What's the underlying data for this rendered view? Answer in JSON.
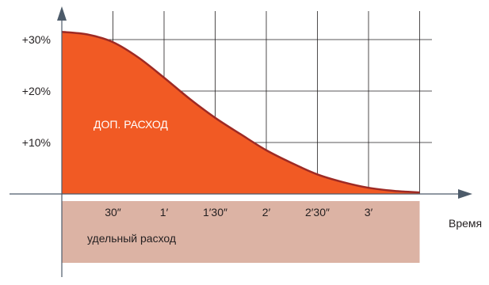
{
  "chart_data": {
    "type": "area",
    "title": "",
    "xlabel": "Время",
    "ylabel": "",
    "x_ticks": [
      {
        "label": "30″",
        "value": 30
      },
      {
        "label": "1′",
        "value": 60
      },
      {
        "label": "1′30″",
        "value": 90
      },
      {
        "label": "2′",
        "value": 120
      },
      {
        "label": "2′30″",
        "value": 150
      },
      {
        "label": "3′",
        "value": 180
      }
    ],
    "y_ticks": [
      {
        "label": "+10%",
        "value": 10
      },
      {
        "label": "+20%",
        "value": 20
      },
      {
        "label": "+30%",
        "value": 30
      }
    ],
    "xlim": [
      0,
      210
    ],
    "ylim": [
      0,
      30
    ],
    "grid": true,
    "series": [
      {
        "name": "ДОП. РАСХОД",
        "color": "#f15a24",
        "x": [
          0,
          15,
          30,
          45,
          60,
          75,
          90,
          105,
          120,
          135,
          150,
          165,
          180,
          195,
          210
        ],
        "y": [
          31.5,
          31,
          29.5,
          26.5,
          22.6,
          18.5,
          14.8,
          11.6,
          8.5,
          6,
          3.8,
          2.3,
          1.2,
          0.6,
          0.3
        ]
      }
    ],
    "band": {
      "label": "удельный расход",
      "color": "#dcb3a4"
    }
  }
}
